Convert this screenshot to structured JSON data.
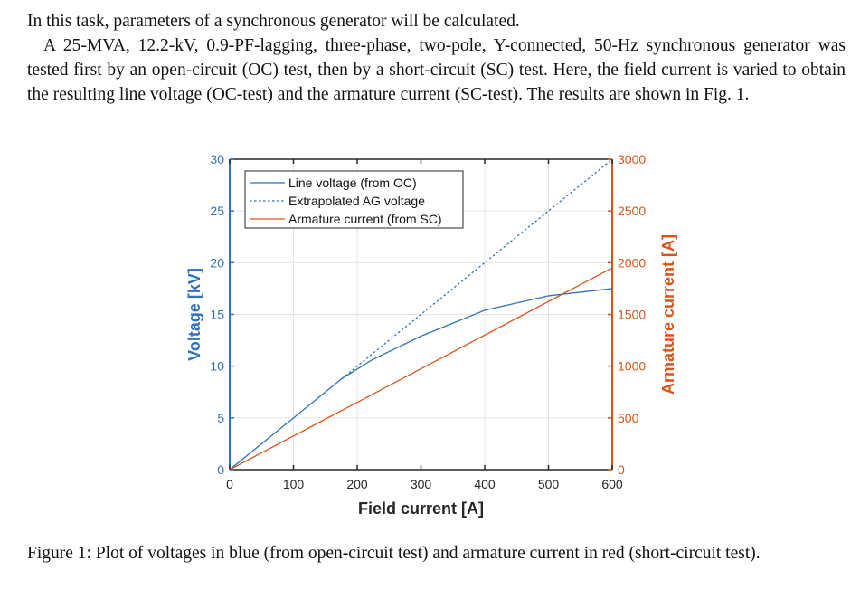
{
  "text": {
    "intro": "In this task, parameters of a synchronous generator will be calculated.",
    "paragraph": "A 25-MVA, 12.2-kV, 0.9-PF-lagging, three-phase, two-pole, Y-connected, 50-Hz synchronous generator was tested first by an open-circuit (OC) test, then by a short-circuit (SC) test. Here, the field current is varied to obtain the resulting line voltage (OC-test) and the armature current (SC-test). The results are shown in Fig. 1.",
    "caption": "Figure 1: Plot of voltages in blue (from open-circuit test) and armature current in red (short-circuit test)."
  },
  "chart_data": {
    "type": "line",
    "xlabel": "Field current [A]",
    "ylabel": "Voltage [kV]",
    "ylabel_right": "Armature current [A]",
    "xlim": [
      0,
      600
    ],
    "ylim": [
      0,
      30
    ],
    "ylim_right": [
      0,
      3000
    ],
    "xticks": [
      0,
      100,
      200,
      300,
      400,
      500,
      600
    ],
    "yticks": [
      0,
      5,
      10,
      15,
      20,
      25,
      30
    ],
    "yticks_right": [
      0,
      500,
      1000,
      1500,
      2000,
      2500,
      3000
    ],
    "grid": true,
    "legend_position": "top-left",
    "colors": {
      "blue": "#2f72bd",
      "orange": "#d9541a"
    },
    "series": [
      {
        "name": "Line voltage (from OC)",
        "axis": "left",
        "style": "solid",
        "color": "#2f72bd",
        "x": [
          0,
          100,
          176,
          223,
          300,
          400,
          500,
          600
        ],
        "y": [
          0,
          5,
          8.8,
          10.6,
          12.9,
          15.4,
          16.8,
          17.5
        ]
      },
      {
        "name": "Extrapolated AG voltage",
        "axis": "left",
        "style": "dotted",
        "color": "#2f72bd",
        "x": [
          176,
          600
        ],
        "y": [
          8.8,
          30
        ]
      },
      {
        "name": "Armature current (from SC)",
        "axis": "right",
        "style": "solid",
        "color": "#d9541a",
        "x": [
          0,
          600
        ],
        "y": [
          0,
          1950
        ]
      }
    ]
  }
}
